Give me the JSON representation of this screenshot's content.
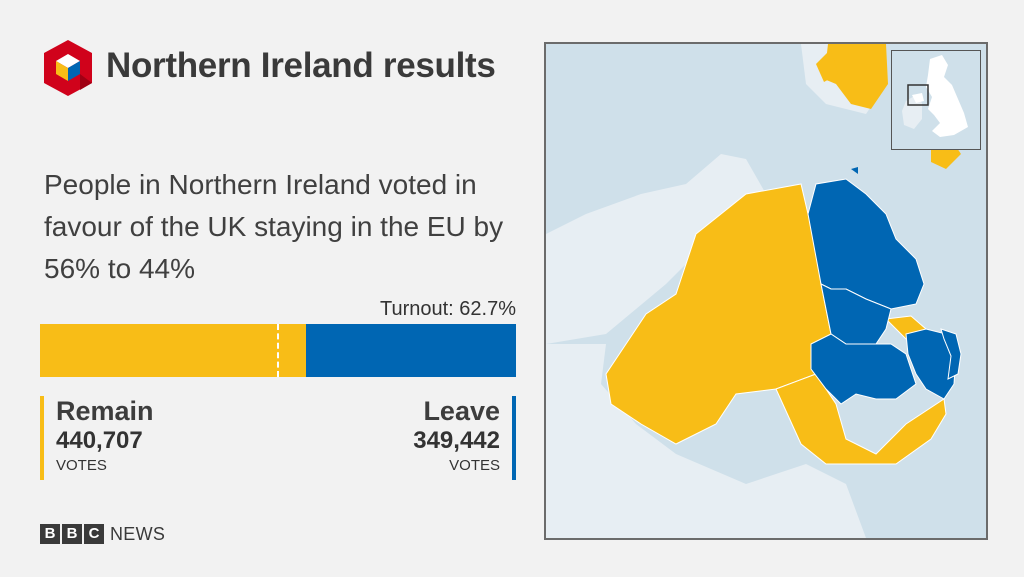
{
  "header": {
    "title": "Northern Ireland results",
    "logo_icon": "bbc-results-cube-icon"
  },
  "summary": "People in Northern Ireland voted in favour of the UK staying in the EU by 56% to 44%",
  "turnout": "Turnout: 62.7%",
  "result": {
    "remain": {
      "label": "Remain",
      "votes": "440,707",
      "unit": "VOTES",
      "share": 0.558,
      "color": "#f8bd17"
    },
    "leave": {
      "label": "Leave",
      "votes": "349,442",
      "unit": "VOTES",
      "share": 0.442,
      "color": "#0066b3"
    }
  },
  "branding": {
    "blocks": [
      "B",
      "B",
      "C"
    ],
    "news": "NEWS"
  },
  "map": {
    "region": "Northern Ireland",
    "remain_color": "#f8bd17",
    "leave_color": "#0066b3",
    "sea_color": "#cfe0ea",
    "land_color": "#e7eef3"
  }
}
